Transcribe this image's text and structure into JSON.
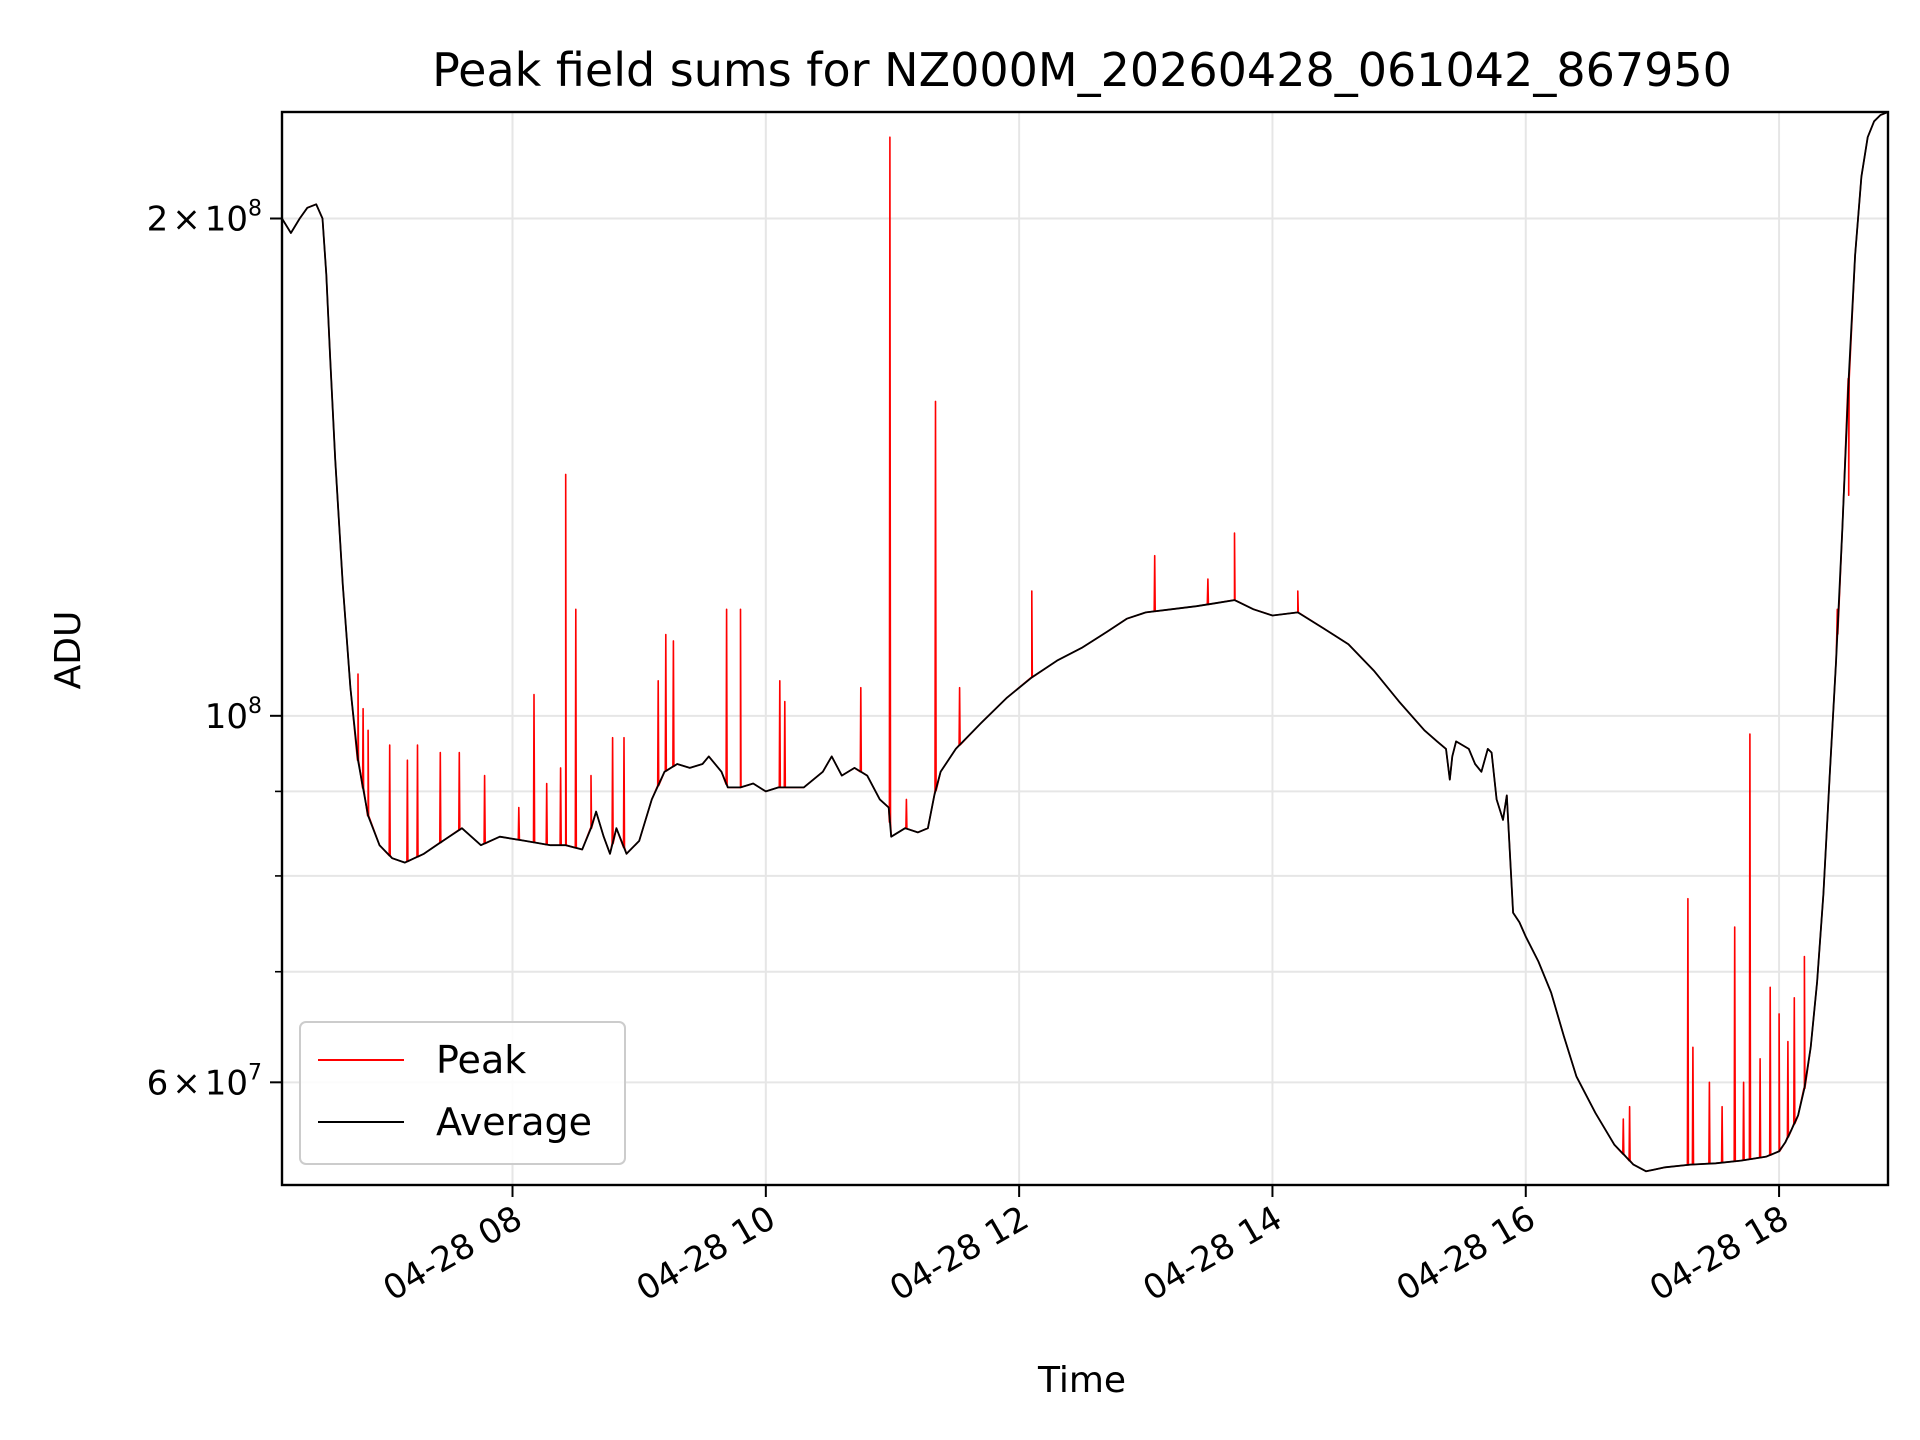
{
  "chart_data": {
    "type": "line",
    "title": "Peak field sums for NZ000M_20260428_061042_867950",
    "xlabel": "Time",
    "ylabel": "ADU",
    "yscale": "log",
    "grid": true,
    "legend_position": "lower-left",
    "xlim": [
      6.18,
      18.86
    ],
    "ylim": [
      52000000,
      232000000
    ],
    "x_unit": "hours since 2026-04-28 00:00",
    "x_ticks": [
      {
        "value": 8,
        "label": "04-28 08"
      },
      {
        "value": 10,
        "label": "04-28 10"
      },
      {
        "value": 12,
        "label": "04-28 12"
      },
      {
        "value": 14,
        "label": "04-28 14"
      },
      {
        "value": 16,
        "label": "04-28 16"
      },
      {
        "value": 18,
        "label": "04-28 18"
      }
    ],
    "y_ticks": [
      {
        "value": 200000000,
        "mantissa": "2",
        "times": "×",
        "base": "10",
        "exponent": "8"
      },
      {
        "value": 100000000,
        "mantissa": "",
        "times": "",
        "base": "10",
        "exponent": "8"
      },
      {
        "value": 60000000,
        "mantissa": "6",
        "times": "×",
        "base": "10",
        "exponent": "7"
      }
    ],
    "y_minor_ticks": [
      70000000,
      80000000,
      90000000
    ],
    "series": [
      {
        "name": "Peak",
        "color": "#ff0000",
        "description": "Average curve plus transient spikes",
        "spikes": [
          {
            "x": 6.78,
            "y": 106000000
          },
          {
            "x": 6.82,
            "y": 101000000
          },
          {
            "x": 6.86,
            "y": 98000000
          },
          {
            "x": 7.03,
            "y": 96000000
          },
          {
            "x": 7.17,
            "y": 94000000
          },
          {
            "x": 7.25,
            "y": 96000000
          },
          {
            "x": 7.43,
            "y": 95000000
          },
          {
            "x": 7.58,
            "y": 95000000
          },
          {
            "x": 7.78,
            "y": 92000000
          },
          {
            "x": 8.05,
            "y": 88000000
          },
          {
            "x": 8.17,
            "y": 103000000
          },
          {
            "x": 8.27,
            "y": 91000000
          },
          {
            "x": 8.38,
            "y": 93000000
          },
          {
            "x": 8.42,
            "y": 140000000
          },
          {
            "x": 8.5,
            "y": 116000000
          },
          {
            "x": 8.62,
            "y": 92000000
          },
          {
            "x": 8.79,
            "y": 97000000
          },
          {
            "x": 8.88,
            "y": 97000000
          },
          {
            "x": 9.15,
            "y": 105000000
          },
          {
            "x": 9.21,
            "y": 112000000
          },
          {
            "x": 9.27,
            "y": 111000000
          },
          {
            "x": 9.69,
            "y": 116000000
          },
          {
            "x": 9.8,
            "y": 116000000
          },
          {
            "x": 10.11,
            "y": 105000000
          },
          {
            "x": 10.15,
            "y": 102000000
          },
          {
            "x": 10.75,
            "y": 104000000
          },
          {
            "x": 10.98,
            "y": 224000000
          },
          {
            "x": 11.11,
            "y": 89000000
          },
          {
            "x": 11.34,
            "y": 155000000
          },
          {
            "x": 11.53,
            "y": 104000000
          },
          {
            "x": 12.1,
            "y": 119000000
          },
          {
            "x": 13.07,
            "y": 125000000
          },
          {
            "x": 13.49,
            "y": 121000000
          },
          {
            "x": 13.7,
            "y": 129000000
          },
          {
            "x": 14.2,
            "y": 119000000
          },
          {
            "x": 16.77,
            "y": 57000000
          },
          {
            "x": 16.82,
            "y": 58000000
          },
          {
            "x": 17.28,
            "y": 77500000
          },
          {
            "x": 17.32,
            "y": 63000000
          },
          {
            "x": 17.45,
            "y": 60000000
          },
          {
            "x": 17.55,
            "y": 58000000
          },
          {
            "x": 17.65,
            "y": 74500000
          },
          {
            "x": 17.72,
            "y": 60000000
          },
          {
            "x": 17.77,
            "y": 97500000
          },
          {
            "x": 17.85,
            "y": 62000000
          },
          {
            "x": 17.93,
            "y": 68500000
          },
          {
            "x": 18.0,
            "y": 66000000
          },
          {
            "x": 18.07,
            "y": 63500000
          },
          {
            "x": 18.12,
            "y": 67500000
          },
          {
            "x": 18.2,
            "y": 71500000
          },
          {
            "x": 18.46,
            "y": 116000000
          },
          {
            "x": 18.55,
            "y": 136000000
          }
        ]
      },
      {
        "name": "Average",
        "color": "#000000",
        "x": [
          6.18,
          6.25,
          6.32,
          6.38,
          6.45,
          6.5,
          6.53,
          6.56,
          6.6,
          6.66,
          6.72,
          6.78,
          6.86,
          6.95,
          7.05,
          7.15,
          7.3,
          7.45,
          7.6,
          7.75,
          7.9,
          8.1,
          8.3,
          8.42,
          8.55,
          8.62,
          8.66,
          8.72,
          8.77,
          8.82,
          8.9,
          9.0,
          9.1,
          9.2,
          9.3,
          9.4,
          9.5,
          9.55,
          9.65,
          9.7,
          9.8,
          9.9,
          10.0,
          10.1,
          10.3,
          10.45,
          10.52,
          10.6,
          10.7,
          10.8,
          10.9,
          10.97,
          10.99,
          11.1,
          11.2,
          11.28,
          11.33,
          11.38,
          11.5,
          11.7,
          11.9,
          12.1,
          12.3,
          12.5,
          12.7,
          12.85,
          13.0,
          13.2,
          13.4,
          13.55,
          13.7,
          13.85,
          14.0,
          14.2,
          14.4,
          14.6,
          14.8,
          15.0,
          15.2,
          15.3,
          15.37,
          15.4,
          15.42,
          15.45,
          15.55,
          15.6,
          15.65,
          15.7,
          15.73,
          15.77,
          15.82,
          15.85,
          15.9,
          15.95,
          16.0,
          16.1,
          16.2,
          16.3,
          16.4,
          16.55,
          16.7,
          16.85,
          16.95,
          17.1,
          17.3,
          17.5,
          17.7,
          17.9,
          18.0,
          18.05,
          18.1,
          18.15,
          18.2,
          18.25,
          18.3,
          18.35,
          18.4,
          18.45,
          18.5,
          18.55,
          18.6,
          18.65,
          18.7,
          18.75,
          18.8,
          18.86
        ],
        "y": [
          200000000,
          196000000,
          200000000,
          203000000,
          204000000,
          200000000,
          185000000,
          165000000,
          143000000,
          120000000,
          104000000,
          94000000,
          87000000,
          83500000,
          82000000,
          81500000,
          82500000,
          84000000,
          85500000,
          83500000,
          84500000,
          84000000,
          83500000,
          83500000,
          83000000,
          85500000,
          87500000,
          84500000,
          82500000,
          85500000,
          82500000,
          84000000,
          89000000,
          92500000,
          93500000,
          93000000,
          93500000,
          94500000,
          92500000,
          90500000,
          90500000,
          91000000,
          90000000,
          90500000,
          90500000,
          92500000,
          94500000,
          92000000,
          93000000,
          92000000,
          89000000,
          88000000,
          84500000,
          85500000,
          85000000,
          85500000,
          89500000,
          92500000,
          95500000,
          99000000,
          102500000,
          105500000,
          108000000,
          110000000,
          112500000,
          114500000,
          115500000,
          116000000,
          116500000,
          117000000,
          117500000,
          116000000,
          115000000,
          115500000,
          113000000,
          110500000,
          106500000,
          102000000,
          98000000,
          96500000,
          95500000,
          91500000,
          94500000,
          96500000,
          95500000,
          93500000,
          92500000,
          95500000,
          95000000,
          89000000,
          86500000,
          89500000,
          76000000,
          75000000,
          73500000,
          71000000,
          68000000,
          64000000,
          60500000,
          57500000,
          55000000,
          53500000,
          53000000,
          53300000,
          53500000,
          53600000,
          53800000,
          54100000,
          54500000,
          55200000,
          56200000,
          57300000,
          59500000,
          63000000,
          69000000,
          78000000,
          92000000,
          108000000,
          130000000,
          160000000,
          190000000,
          212000000,
          224000000,
          229000000,
          231000000,
          232000000
        ]
      }
    ]
  }
}
